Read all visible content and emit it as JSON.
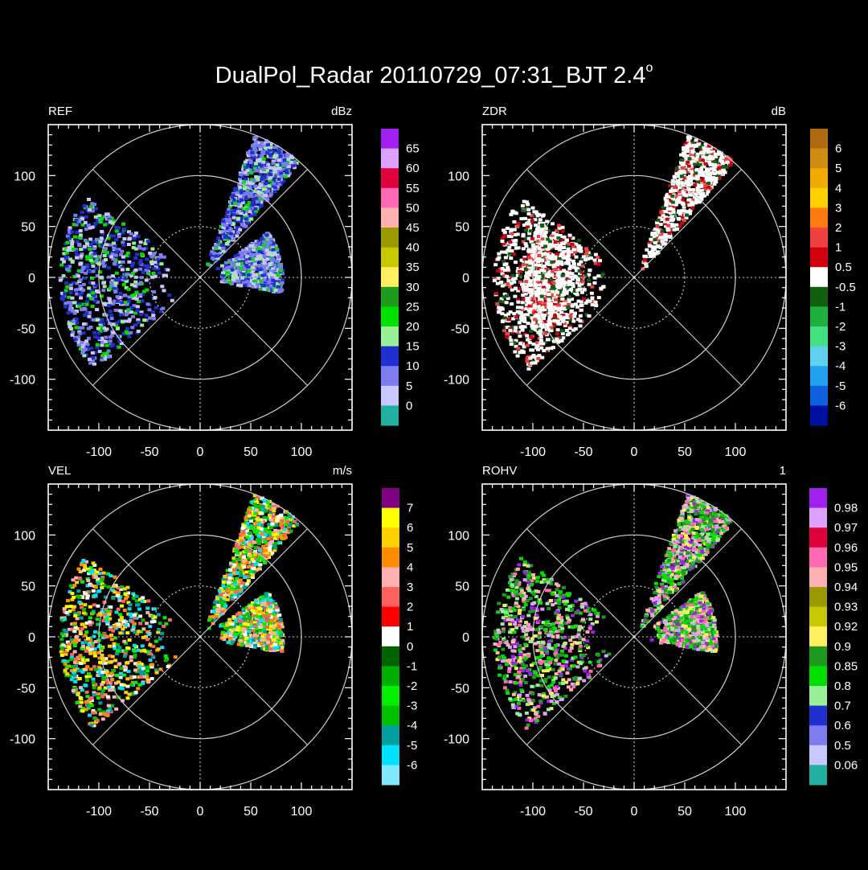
{
  "figure": {
    "title": "DualPol_Radar 20110729_07:31_BJT 2.4",
    "title_suffix": "o"
  },
  "chart_data": [
    {
      "type": "heatmap",
      "projection": "polar-ppi",
      "panel": "top-left",
      "variable_label": "REF",
      "unit_label": "dBz",
      "xlim": [
        -150,
        150
      ],
      "ylim": [
        -150,
        150
      ],
      "x_ticks": [
        "-100",
        "-50",
        "0",
        "50",
        "100"
      ],
      "y_ticks": [
        "100",
        "50",
        "0",
        "-50",
        "-100"
      ],
      "range_rings_km": [
        50,
        100,
        150
      ],
      "azimuth_spokes_deg": [
        0,
        45,
        90,
        135,
        180,
        225,
        270,
        315
      ],
      "colorbar": {
        "labels": [
          "65",
          "60",
          "55",
          "50",
          "45",
          "40",
          "35",
          "30",
          "25",
          "20",
          "15",
          "10",
          "5",
          "0"
        ],
        "colors": [
          "#a020f0",
          "#dda0ff",
          "#e0003c",
          "#ff69b4",
          "#ffb0b0",
          "#9a9a00",
          "#c8c800",
          "#ffee60",
          "#1e9a1e",
          "#00e000",
          "#98f098",
          "#2030d0",
          "#7c7cf0",
          "#c8c8ff",
          "#20b0a0"
        ]
      },
      "echo_features": [
        {
          "name": "northeast band",
          "az_deg": [
            20,
            40
          ],
          "range_km": [
            10,
            150
          ],
          "dominant": "15-20"
        },
        {
          "name": "western mass",
          "az_deg": [
            230,
            305
          ],
          "range_km": [
            30,
            140
          ],
          "dominant": "10-15"
        },
        {
          "name": "eastern cluster",
          "az_deg": [
            55,
            100
          ],
          "range_km": [
            15,
            80
          ],
          "dominant": "5-15"
        }
      ]
    },
    {
      "type": "heatmap",
      "projection": "polar-ppi",
      "panel": "top-right",
      "variable_label": "ZDR",
      "unit_label": "dB",
      "xlim": [
        -150,
        150
      ],
      "ylim": [
        -150,
        150
      ],
      "x_ticks": [
        "-100",
        "-50",
        "0",
        "50",
        "100"
      ],
      "y_ticks": [
        "100",
        "50",
        "0",
        "-50",
        "-100"
      ],
      "range_rings_km": [
        50,
        100,
        150
      ],
      "azimuth_spokes_deg": [
        0,
        45,
        90,
        135,
        180,
        225,
        270,
        315
      ],
      "colorbar": {
        "labels": [
          "6",
          "5",
          "4",
          "3",
          "2",
          "1",
          "0.5",
          "-0.5",
          "-1",
          "-2",
          "-3",
          "-4",
          "-5",
          "-6"
        ],
        "colors": [
          "#b06a10",
          "#d08c10",
          "#f0aa00",
          "#ffd000",
          "#ff7a10",
          "#f04040",
          "#d00010",
          "#ffffff",
          "#106010",
          "#20b040",
          "#40e080",
          "#60d0f0",
          "#20a0f0",
          "#1060e0",
          "#0010a0"
        ]
      },
      "echo_features": [
        {
          "name": "northeast band",
          "az_deg": [
            20,
            40
          ],
          "range_km": [
            10,
            150
          ],
          "dominant": "-0.5 to 0.5"
        },
        {
          "name": "western mass",
          "az_deg": [
            230,
            305
          ],
          "range_km": [
            30,
            140
          ],
          "dominant": "-0.5 to 0.5"
        },
        {
          "name": "embedded cores",
          "az_deg": [
            240,
            300
          ],
          "range_km": [
            50,
            110
          ],
          "dominant": "1-2"
        }
      ]
    },
    {
      "type": "heatmap",
      "projection": "polar-ppi",
      "panel": "bottom-left",
      "variable_label": "VEL",
      "unit_label": "m/s",
      "xlim": [
        -150,
        150
      ],
      "ylim": [
        -150,
        150
      ],
      "x_ticks": [
        "-100",
        "-50",
        "0",
        "50",
        "100"
      ],
      "y_ticks": [
        "100",
        "50",
        "0",
        "-50",
        "-100"
      ],
      "range_rings_km": [
        50,
        100,
        150
      ],
      "azimuth_spokes_deg": [
        0,
        45,
        90,
        135,
        180,
        225,
        270,
        315
      ],
      "colorbar": {
        "labels": [
          "7",
          "6",
          "5",
          "4",
          "3",
          "2",
          "1",
          "0",
          "-1",
          "-2",
          "-3",
          "-4",
          "-5",
          "-6"
        ],
        "colors": [
          "#800080",
          "#ffff00",
          "#ffd000",
          "#ff8c00",
          "#ffb0b0",
          "#ff6060",
          "#ff0000",
          "#ffffff",
          "#006400",
          "#00b000",
          "#00f000",
          "#00c000",
          "#00a0a0",
          "#00e0ff",
          "#80e8ff"
        ]
      },
      "echo_features": [
        {
          "name": "northeast band",
          "az_deg": [
            20,
            40
          ],
          "range_km": [
            10,
            150
          ],
          "dominant": "mixed"
        },
        {
          "name": "western mass",
          "az_deg": [
            230,
            305
          ],
          "range_km": [
            30,
            140
          ],
          "dominant": "outbound 2-6"
        },
        {
          "name": "eastern cluster",
          "az_deg": [
            55,
            100
          ],
          "range_km": [
            15,
            80
          ],
          "dominant": "inbound -2 to -5"
        }
      ]
    },
    {
      "type": "heatmap",
      "projection": "polar-ppi",
      "panel": "bottom-right",
      "variable_label": "ROHV",
      "unit_label": "1",
      "xlim": [
        -150,
        150
      ],
      "ylim": [
        -150,
        150
      ],
      "x_ticks": [
        "-100",
        "-50",
        "0",
        "50",
        "100"
      ],
      "y_ticks": [
        "100",
        "50",
        "0",
        "-50",
        "-100"
      ],
      "range_rings_km": [
        50,
        100,
        150
      ],
      "azimuth_spokes_deg": [
        0,
        45,
        90,
        135,
        180,
        225,
        270,
        315
      ],
      "colorbar": {
        "labels": [
          "0.98",
          "0.97",
          "0.96",
          "0.95",
          "0.94",
          "0.93",
          "0.92",
          "0.9",
          "0.85",
          "0.8",
          "0.7",
          "0.6",
          "0.5",
          "0.06"
        ],
        "colors": [
          "#a020f0",
          "#dda0ff",
          "#e0003c",
          "#ff69b4",
          "#ffb0b0",
          "#9a9a00",
          "#c8c800",
          "#ffee60",
          "#1e9a1e",
          "#00e000",
          "#98f098",
          "#2030d0",
          "#7c7cf0",
          "#c8c8ff",
          "#20b0a0"
        ]
      },
      "echo_features": [
        {
          "name": "northeast band",
          "az_deg": [
            20,
            40
          ],
          "range_km": [
            10,
            150
          ],
          "dominant": "0.96-0.98"
        },
        {
          "name": "western mass",
          "az_deg": [
            230,
            305
          ],
          "range_km": [
            30,
            140
          ],
          "dominant": "0.85-0.95"
        },
        {
          "name": "eastern cluster",
          "az_deg": [
            55,
            100
          ],
          "range_km": [
            15,
            80
          ],
          "dominant": "0.97-0.98"
        }
      ]
    }
  ]
}
